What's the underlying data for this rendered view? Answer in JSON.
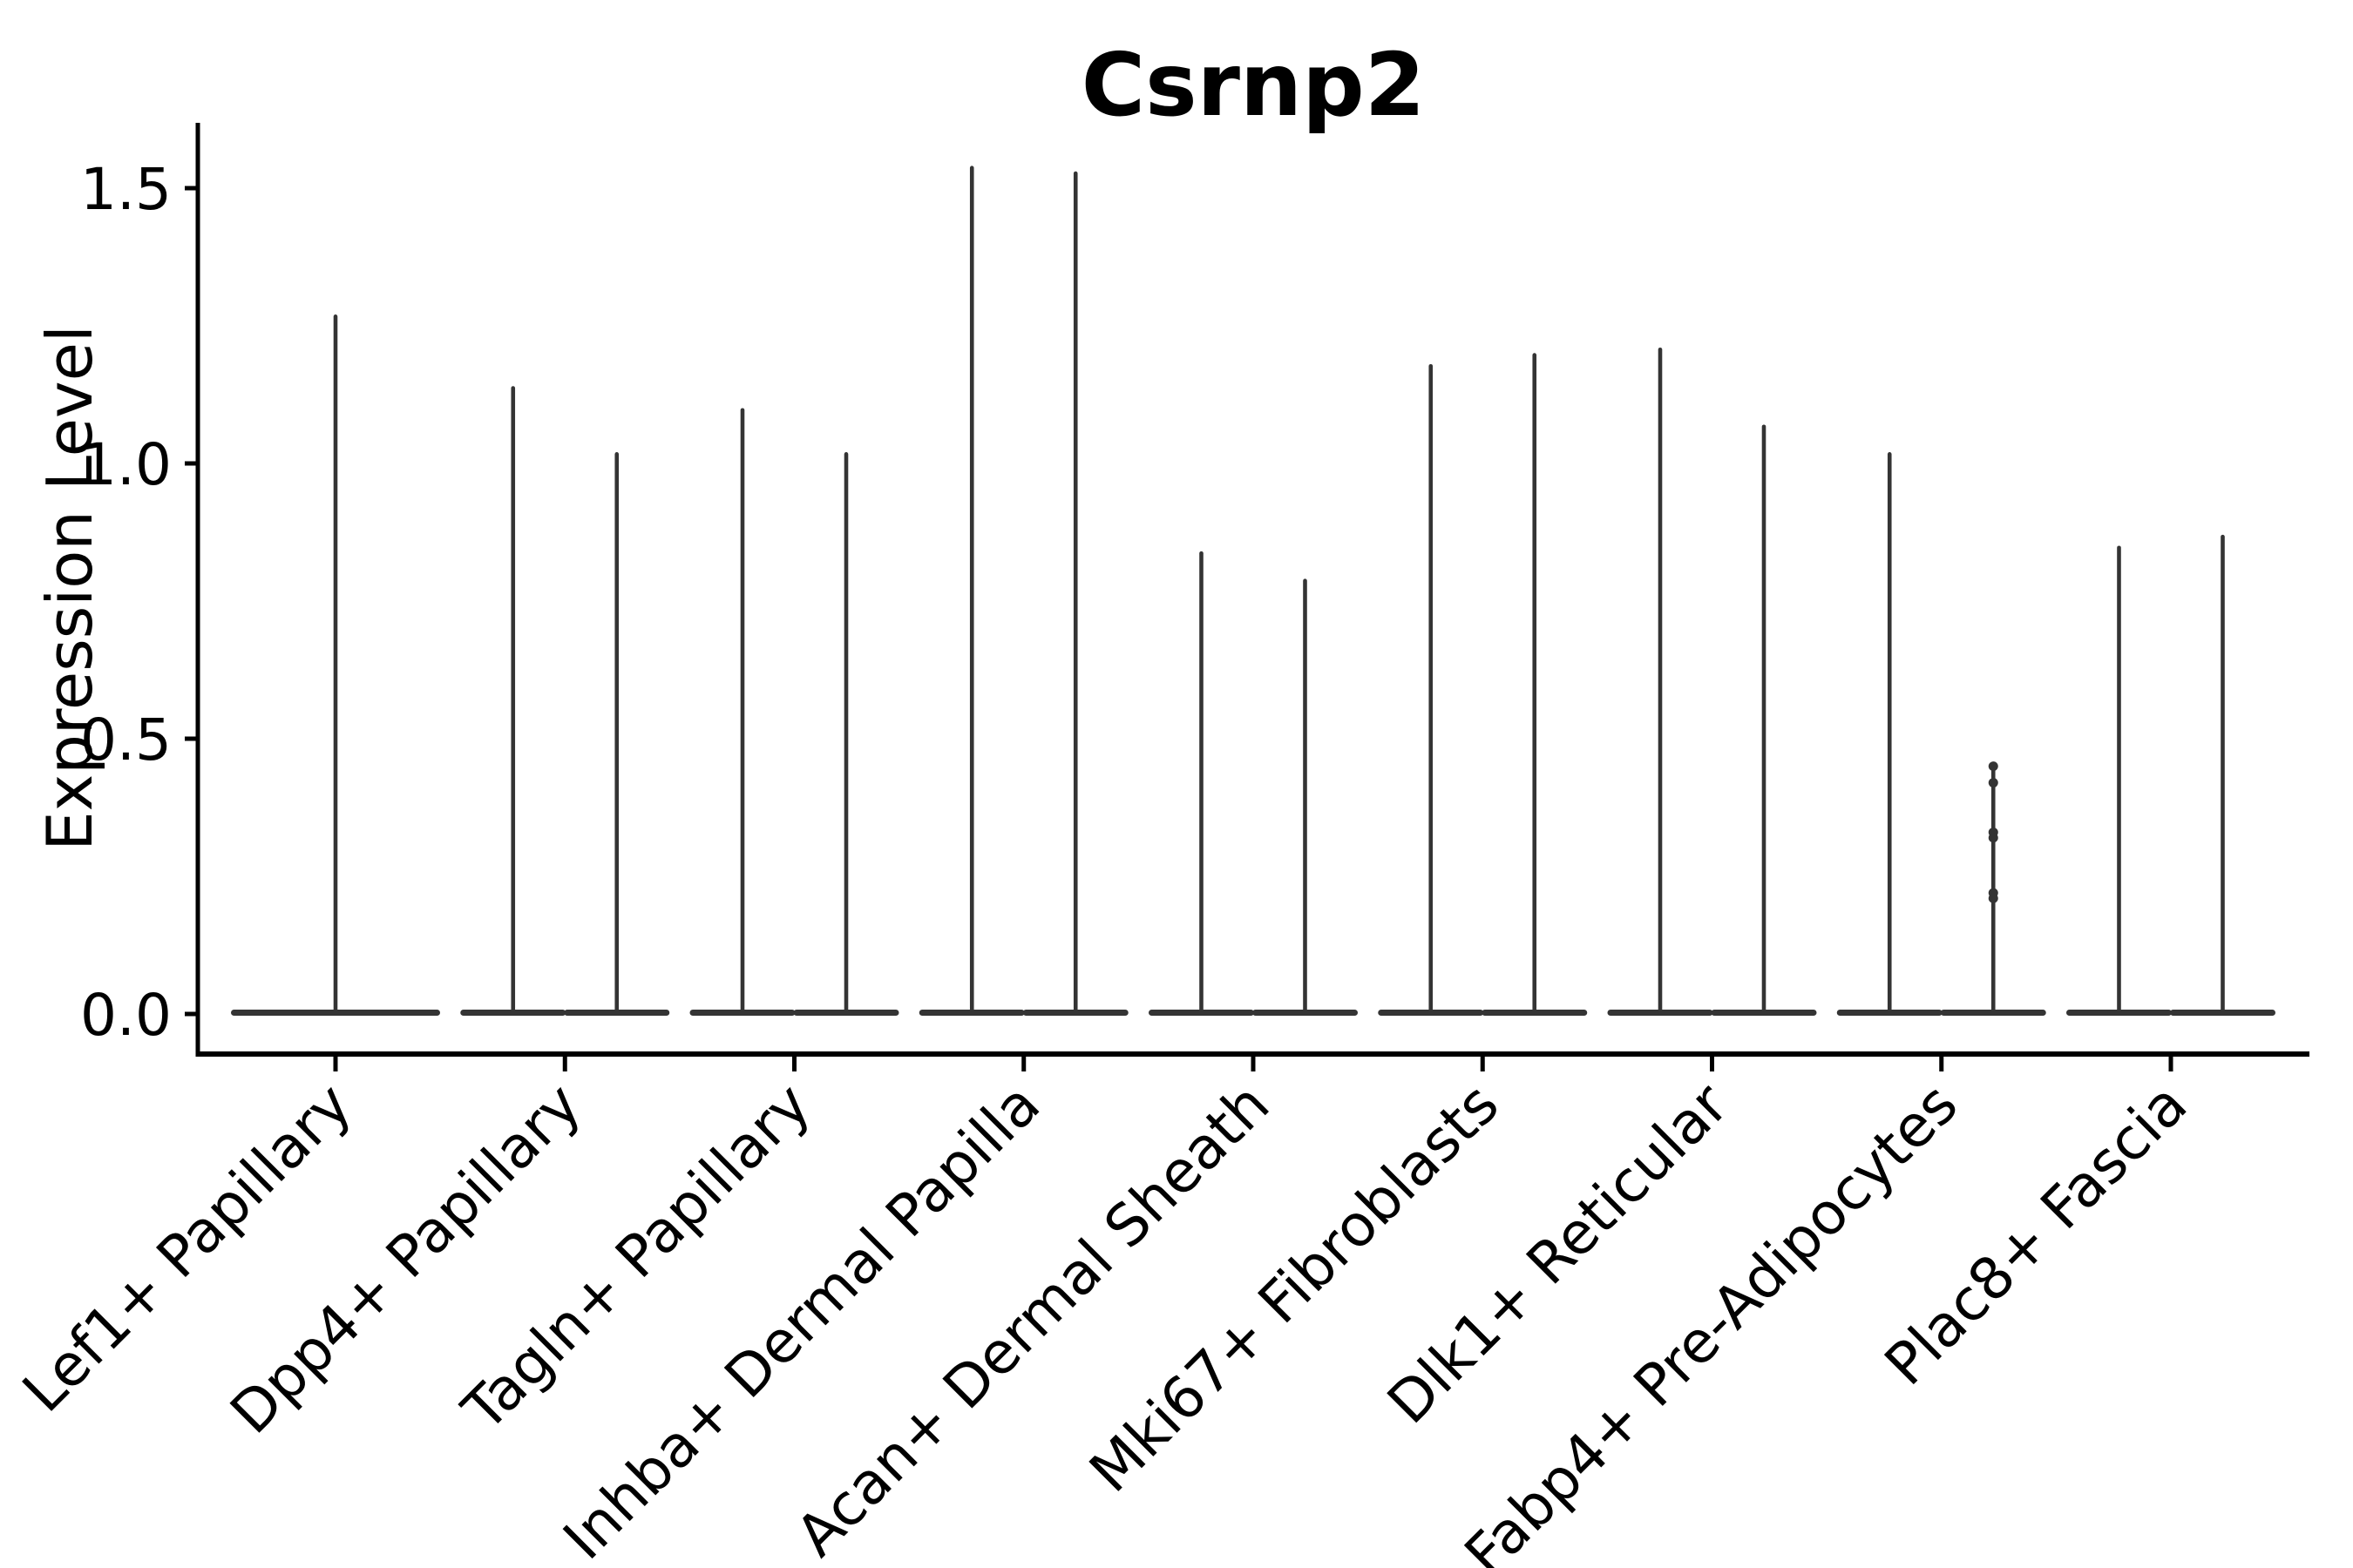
{
  "chart_data": {
    "type": "violin",
    "title": "Csrnp2",
    "ylabel": "Expression Level",
    "xlabel": "",
    "yticks": [
      0.0,
      0.5,
      1.0,
      1.5
    ],
    "ylim": [
      -0.073,
      1.62
    ],
    "grid": false,
    "legend": "none",
    "ink_color": "#343434",
    "axis_color": "#000000",
    "background_color": "#ffffff",
    "description": "Violin plot of expression level per cluster; each category holds two near-zero-width violins (flat body at 0 with a thin spike to the max expression), except the first category which has a single full-width violin.",
    "categories": [
      {
        "label": "Lef1+ Papillary",
        "violins": [
          {
            "max": 1.27
          }
        ]
      },
      {
        "label": "Dpp4+ Papillary",
        "violins": [
          {
            "max": 1.14
          },
          {
            "max": 1.02
          }
        ]
      },
      {
        "label": "Tagln+ Papillary",
        "violins": [
          {
            "max": 1.1
          },
          {
            "max": 1.02
          }
        ]
      },
      {
        "label": "Inhba+ Dermal Papilla",
        "violins": [
          {
            "max": 1.54
          },
          {
            "max": 1.53
          }
        ]
      },
      {
        "label": "Acan+ Dermal Sheath",
        "violins": [
          {
            "max": 0.84
          },
          {
            "max": 0.79
          }
        ]
      },
      {
        "label": "Mki67+ Fibroblasts",
        "violins": [
          {
            "max": 1.18
          },
          {
            "max": 1.2
          }
        ]
      },
      {
        "label": "Dlk1+ Reticular",
        "violins": [
          {
            "max": 1.21
          },
          {
            "max": 1.07
          }
        ]
      },
      {
        "label": "Fabp4+ Pre-Adipocytes",
        "violins": [
          {
            "max": 1.02
          },
          {
            "max": 0.45,
            "dots": [
              0.45,
              0.42,
              0.33,
              0.32,
              0.22,
              0.21
            ]
          }
        ]
      },
      {
        "label": "Plac8+ Fascia",
        "violins": [
          {
            "max": 0.85
          },
          {
            "max": 0.87
          }
        ]
      }
    ]
  }
}
